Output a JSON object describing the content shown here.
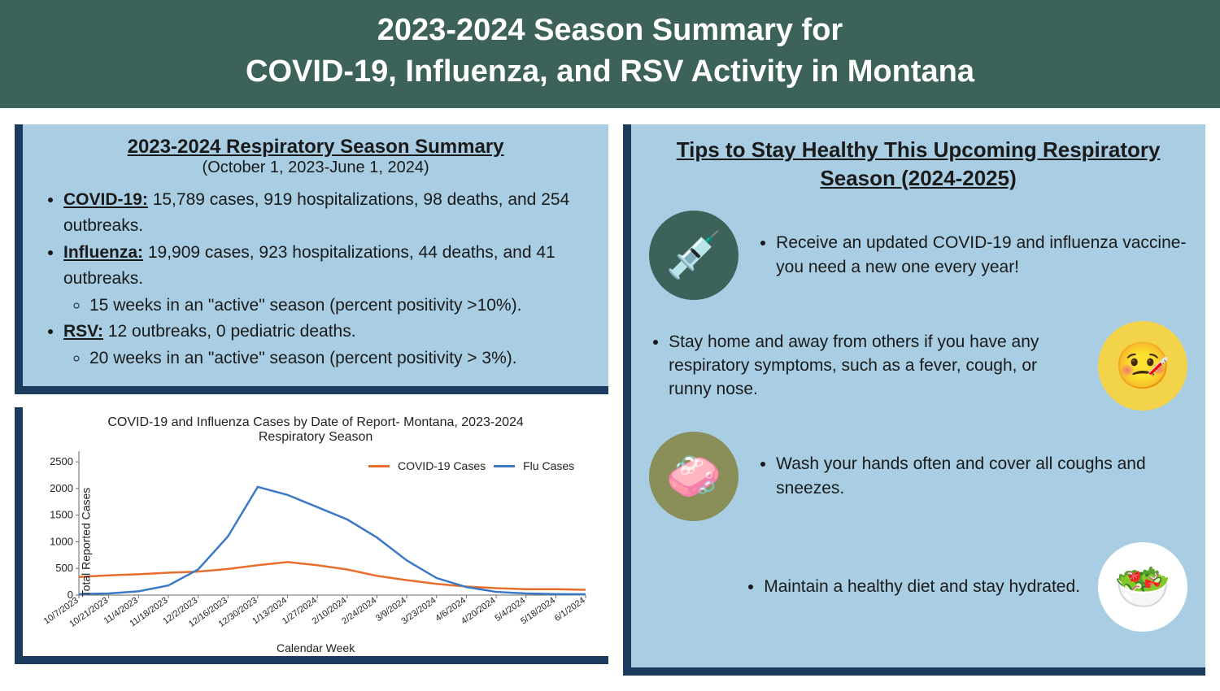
{
  "header": {
    "line1": "2023-2024 Season Summary for",
    "line2": "COVID-19, Influenza, and RSV Activity in Montana",
    "bg_color": "#3d6259",
    "text_color": "#ffffff"
  },
  "summary": {
    "title": "2023-2024 Respiratory Season Summary",
    "dates": "(October 1, 2023-June 1, 2024)",
    "items": [
      {
        "label": "COVID-19:",
        "text": " 15,789 cases, 919 hospitalizations, 98 deaths, and 254 outbreaks."
      },
      {
        "label": "Influenza:",
        "text": " 19,909 cases, 923 hospitalizations, 44 deaths, and 41 outbreaks.",
        "sub": [
          "15 weeks in an \"active\" season (percent positivity >10%)."
        ]
      },
      {
        "label": "RSV:",
        "text": " 12 outbreaks, 0 pediatric deaths.",
        "sub": [
          "20 weeks in an \"active\" season (percent positivity > 3%)."
        ]
      }
    ]
  },
  "chart": {
    "type": "line",
    "title_line1": "COVID-19 and Influenza Cases by Date of Report- Montana, 2023-2024",
    "title_line2": "Respiratory Season",
    "xlabel": "Calendar Week",
    "ylabel": "Total Reported Cases",
    "ylim": [
      0,
      2700
    ],
    "yticks": [
      0,
      500,
      1000,
      1500,
      2000,
      2500
    ],
    "x_categories": [
      "10/7/2023",
      "10/21/2023",
      "11/4/2023",
      "11/18/2023",
      "12/2/2023",
      "12/16/2023",
      "12/30/2023",
      "1/13/2024",
      "1/27/2024",
      "2/10/2024",
      "2/24/2024",
      "3/9/2024",
      "3/23/2024",
      "4/6/2024",
      "4/20/2024",
      "5/4/2024",
      "5/18/2024",
      "6/1/2024"
    ],
    "series": [
      {
        "name": "COVID-19 Cases",
        "color": "#e76f2e",
        "values": [
          340,
          370,
          390,
          420,
          440,
          490,
          560,
          620,
          560,
          480,
          360,
          280,
          210,
          160,
          130,
          110,
          110,
          100
        ]
      },
      {
        "name": "Flu Cases",
        "color": "#3b79c4",
        "values": [
          20,
          30,
          70,
          180,
          480,
          1100,
          2030,
          1880,
          1650,
          1420,
          1080,
          650,
          320,
          150,
          60,
          30,
          20,
          15
        ]
      }
    ],
    "line_width": 2.5,
    "background_color": "#ffffff",
    "axis_color": "#6a6a6a"
  },
  "tips": {
    "title": "Tips to Stay Healthy This Upcoming Respiratory Season (2024-2025)",
    "items": [
      {
        "text": "Receive an updated COVID-19 and influenza vaccine- you need a new one every year!",
        "icon": "syringe-icon",
        "icon_bg": "#3d6259",
        "icon_glyph": "💉",
        "align": "left"
      },
      {
        "text": "Stay home and away from others if you have any respiratory symptoms, such as a fever, cough, or runny nose.",
        "icon": "sick-person-icon",
        "icon_bg": "#f3d34a",
        "icon_glyph": "🤒",
        "align": "right"
      },
      {
        "text": "Wash your hands often and cover all coughs and sneezes.",
        "icon": "handwash-icon",
        "icon_bg": "#8a8f5a",
        "icon_glyph": "🧼",
        "align": "left"
      },
      {
        "text": "Maintain a healthy diet and stay hydrated.",
        "icon": "healthy-food-icon",
        "icon_bg": "#ffffff",
        "icon_glyph": "🥗",
        "align": "right"
      }
    ]
  },
  "panel_style": {
    "panel_bg": "#a9cee3",
    "panel_border": "#1d3a5f"
  }
}
